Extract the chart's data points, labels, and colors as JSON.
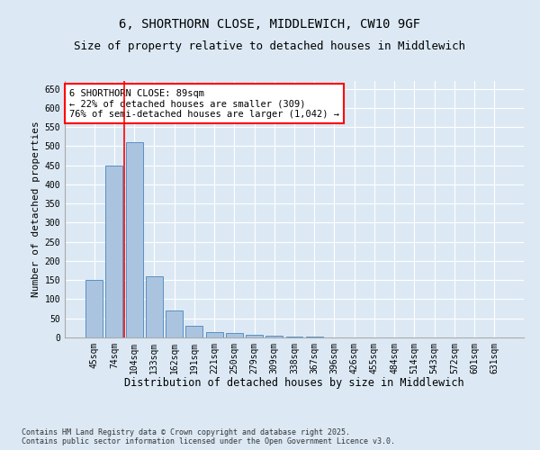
{
  "title": "6, SHORTHORN CLOSE, MIDDLEWICH, CW10 9GF",
  "subtitle": "Size of property relative to detached houses in Middlewich",
  "xlabel": "Distribution of detached houses by size in Middlewich",
  "ylabel": "Number of detached properties",
  "categories": [
    "45sqm",
    "74sqm",
    "104sqm",
    "133sqm",
    "162sqm",
    "191sqm",
    "221sqm",
    "250sqm",
    "279sqm",
    "309sqm",
    "338sqm",
    "367sqm",
    "396sqm",
    "426sqm",
    "455sqm",
    "484sqm",
    "514sqm",
    "543sqm",
    "572sqm",
    "601sqm",
    "631sqm"
  ],
  "values": [
    150,
    450,
    510,
    160,
    70,
    30,
    15,
    12,
    8,
    5,
    3,
    2,
    1,
    1,
    1,
    0,
    0,
    0,
    0,
    0,
    0
  ],
  "bar_color": "#aac4e0",
  "bar_edge_color": "#5a8fc0",
  "vline_x": 1.5,
  "vline_color": "red",
  "annotation_text": "6 SHORTHORN CLOSE: 89sqm\n← 22% of detached houses are smaller (309)\n76% of semi-detached houses are larger (1,042) →",
  "annotation_box_color": "white",
  "annotation_box_edge_color": "red",
  "ylim": [
    0,
    670
  ],
  "yticks": [
    0,
    50,
    100,
    150,
    200,
    250,
    300,
    350,
    400,
    450,
    500,
    550,
    600,
    650
  ],
  "background_color": "#dce9f5",
  "plot_bg_color": "#dce9f5",
  "footnote": "Contains HM Land Registry data © Crown copyright and database right 2025.\nContains public sector information licensed under the Open Government Licence v3.0.",
  "title_fontsize": 10,
  "subtitle_fontsize": 9,
  "xlabel_fontsize": 8.5,
  "ylabel_fontsize": 8,
  "tick_fontsize": 7,
  "annotation_fontsize": 7.5,
  "footnote_fontsize": 6
}
